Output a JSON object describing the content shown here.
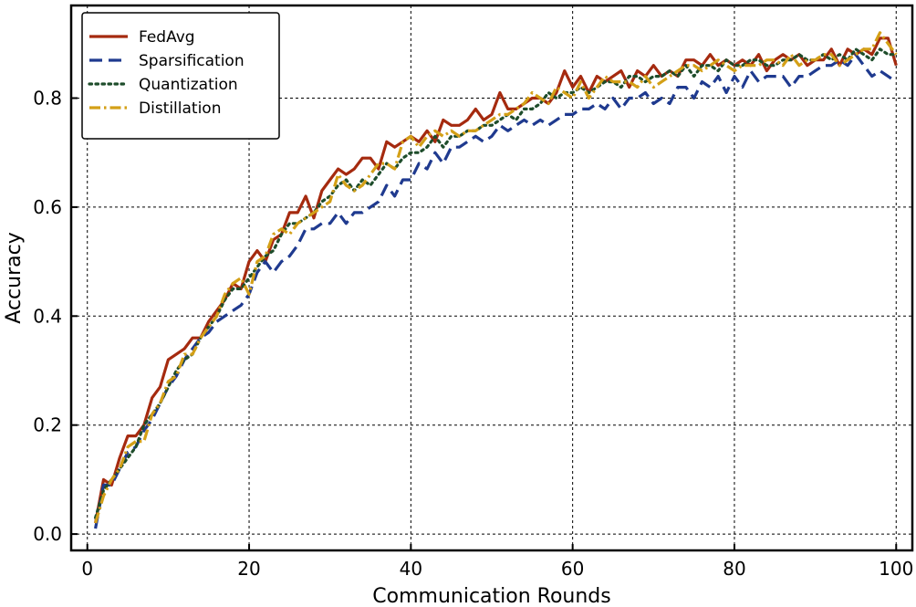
{
  "chart_data": {
    "type": "line",
    "title": "",
    "xlabel": "Communication Rounds",
    "ylabel": "Accuracy",
    "xlim": [
      -2,
      102
    ],
    "ylim": [
      -0.03,
      0.97
    ],
    "xticks": [
      0,
      20,
      40,
      60,
      80,
      100
    ],
    "xtick_labels": [
      "0",
      "20",
      "40",
      "60",
      "80",
      "100"
    ],
    "yticks": [
      0.0,
      0.2,
      0.4,
      0.6,
      0.8
    ],
    "ytick_labels": [
      "0.0",
      "0.2",
      "0.4",
      "0.6",
      "0.8"
    ],
    "grid": true,
    "legend_position": "top-left",
    "x": [
      1,
      2,
      3,
      4,
      5,
      6,
      7,
      8,
      9,
      10,
      11,
      12,
      13,
      14,
      15,
      16,
      17,
      18,
      19,
      20,
      21,
      22,
      23,
      24,
      25,
      26,
      27,
      28,
      29,
      30,
      31,
      32,
      33,
      34,
      35,
      36,
      37,
      38,
      39,
      40,
      41,
      42,
      43,
      44,
      45,
      46,
      47,
      48,
      49,
      50,
      51,
      52,
      53,
      54,
      55,
      56,
      57,
      58,
      59,
      60,
      61,
      62,
      63,
      64,
      65,
      66,
      67,
      68,
      69,
      70,
      71,
      72,
      73,
      74,
      75,
      76,
      77,
      78,
      79,
      80,
      81,
      82,
      83,
      84,
      85,
      86,
      87,
      88,
      89,
      90,
      91,
      92,
      93,
      94,
      95,
      96,
      97,
      98,
      99,
      100
    ],
    "series": [
      {
        "name": "FedAvg",
        "color": "#a52a0f",
        "style": "solid",
        "values": [
          0.02,
          0.1,
          0.09,
          0.14,
          0.18,
          0.18,
          0.2,
          0.25,
          0.27,
          0.32,
          0.33,
          0.34,
          0.36,
          0.36,
          0.39,
          0.41,
          0.43,
          0.46,
          0.45,
          0.5,
          0.52,
          0.5,
          0.54,
          0.55,
          0.59,
          0.59,
          0.62,
          0.58,
          0.63,
          0.65,
          0.67,
          0.66,
          0.67,
          0.69,
          0.69,
          0.67,
          0.72,
          0.71,
          0.72,
          0.73,
          0.72,
          0.74,
          0.72,
          0.76,
          0.75,
          0.75,
          0.76,
          0.78,
          0.76,
          0.77,
          0.81,
          0.78,
          0.78,
          0.79,
          0.8,
          0.8,
          0.79,
          0.81,
          0.85,
          0.82,
          0.84,
          0.81,
          0.84,
          0.83,
          0.84,
          0.85,
          0.82,
          0.85,
          0.84,
          0.86,
          0.84,
          0.85,
          0.84,
          0.87,
          0.87,
          0.86,
          0.88,
          0.86,
          0.87,
          0.86,
          0.87,
          0.86,
          0.88,
          0.85,
          0.87,
          0.88,
          0.87,
          0.88,
          0.86,
          0.87,
          0.87,
          0.89,
          0.86,
          0.89,
          0.88,
          0.89,
          0.88,
          0.91,
          0.91,
          0.86
        ]
      },
      {
        "name": "Sparsification",
        "color": "#1f3a8f",
        "style": "dashed",
        "values": [
          0.01,
          0.09,
          0.09,
          0.12,
          0.15,
          0.16,
          0.19,
          0.21,
          0.24,
          0.27,
          0.29,
          0.32,
          0.34,
          0.36,
          0.37,
          0.39,
          0.4,
          0.41,
          0.42,
          0.44,
          0.48,
          0.5,
          0.48,
          0.5,
          0.51,
          0.53,
          0.56,
          0.56,
          0.57,
          0.57,
          0.59,
          0.57,
          0.59,
          0.59,
          0.6,
          0.61,
          0.64,
          0.62,
          0.65,
          0.65,
          0.68,
          0.67,
          0.7,
          0.68,
          0.71,
          0.71,
          0.72,
          0.73,
          0.72,
          0.73,
          0.75,
          0.74,
          0.75,
          0.76,
          0.75,
          0.76,
          0.75,
          0.76,
          0.77,
          0.77,
          0.78,
          0.78,
          0.79,
          0.78,
          0.8,
          0.78,
          0.8,
          0.8,
          0.81,
          0.79,
          0.8,
          0.79,
          0.82,
          0.82,
          0.8,
          0.83,
          0.82,
          0.84,
          0.81,
          0.84,
          0.82,
          0.85,
          0.83,
          0.84,
          0.84,
          0.84,
          0.82,
          0.84,
          0.84,
          0.85,
          0.86,
          0.86,
          0.87,
          0.86,
          0.88,
          0.86,
          0.84,
          0.85,
          0.84,
          0.83
        ]
      },
      {
        "name": "Quantization",
        "color": "#1e4d2b",
        "style": "dotted",
        "values": [
          0.03,
          0.08,
          0.1,
          0.12,
          0.14,
          0.16,
          0.2,
          0.22,
          0.24,
          0.27,
          0.3,
          0.32,
          0.33,
          0.36,
          0.38,
          0.4,
          0.43,
          0.45,
          0.45,
          0.47,
          0.49,
          0.51,
          0.52,
          0.55,
          0.57,
          0.57,
          0.58,
          0.59,
          0.61,
          0.62,
          0.64,
          0.65,
          0.63,
          0.65,
          0.64,
          0.66,
          0.68,
          0.67,
          0.69,
          0.7,
          0.7,
          0.71,
          0.73,
          0.71,
          0.73,
          0.73,
          0.74,
          0.74,
          0.75,
          0.75,
          0.76,
          0.77,
          0.76,
          0.78,
          0.78,
          0.79,
          0.81,
          0.8,
          0.81,
          0.81,
          0.82,
          0.81,
          0.82,
          0.83,
          0.83,
          0.82,
          0.84,
          0.84,
          0.83,
          0.84,
          0.84,
          0.85,
          0.84,
          0.86,
          0.84,
          0.86,
          0.86,
          0.85,
          0.87,
          0.86,
          0.86,
          0.87,
          0.87,
          0.86,
          0.86,
          0.87,
          0.87,
          0.88,
          0.87,
          0.87,
          0.88,
          0.87,
          0.88,
          0.87,
          0.89,
          0.88,
          0.87,
          0.89,
          0.88,
          0.88
        ]
      },
      {
        "name": "Distillation",
        "color": "#d4a017",
        "style": "dashdot",
        "values": [
          0.02,
          0.07,
          0.1,
          0.12,
          0.16,
          0.17,
          0.17,
          0.22,
          0.24,
          0.28,
          0.29,
          0.33,
          0.33,
          0.36,
          0.38,
          0.4,
          0.44,
          0.46,
          0.47,
          0.44,
          0.5,
          0.51,
          0.55,
          0.56,
          0.55,
          0.57,
          0.58,
          0.59,
          0.6,
          0.61,
          0.66,
          0.64,
          0.63,
          0.64,
          0.66,
          0.68,
          0.68,
          0.67,
          0.72,
          0.73,
          0.71,
          0.73,
          0.74,
          0.73,
          0.74,
          0.73,
          0.74,
          0.74,
          0.75,
          0.76,
          0.77,
          0.77,
          0.78,
          0.79,
          0.81,
          0.8,
          0.79,
          0.82,
          0.81,
          0.8,
          0.83,
          0.8,
          0.82,
          0.84,
          0.83,
          0.83,
          0.83,
          0.82,
          0.84,
          0.82,
          0.83,
          0.84,
          0.85,
          0.86,
          0.86,
          0.85,
          0.86,
          0.87,
          0.86,
          0.85,
          0.86,
          0.86,
          0.86,
          0.87,
          0.87,
          0.86,
          0.88,
          0.86,
          0.87,
          0.87,
          0.88,
          0.88,
          0.86,
          0.87,
          0.88,
          0.89,
          0.89,
          0.92,
          0.9,
          0.88
        ]
      }
    ]
  }
}
